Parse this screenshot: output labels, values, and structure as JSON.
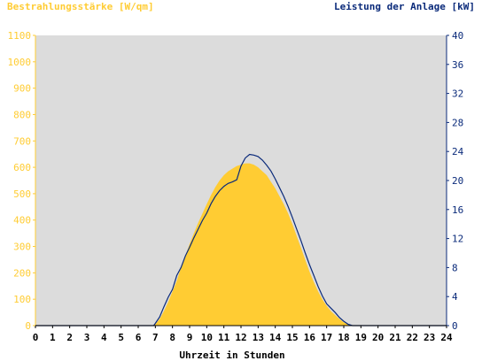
{
  "chart_data": {
    "type": "area",
    "left_axis_title": "Bestrahlungsstärke [W/qm]",
    "right_axis_title": "Leistung der Anlage [kW]",
    "xlabel": "Uhrzeit in Stunden",
    "x_ticks": [
      "0",
      "1",
      "2",
      "3",
      "4",
      "5",
      "6",
      "7",
      "8",
      "9",
      "10",
      "11",
      "12",
      "13",
      "14",
      "15",
      "16",
      "17",
      "18",
      "19",
      "20",
      "21",
      "22",
      "23",
      "24"
    ],
    "xlim": [
      0,
      24
    ],
    "y_left_ticks": [
      "0",
      "100",
      "200",
      "300",
      "400",
      "500",
      "600",
      "700",
      "800",
      "900",
      "1000",
      "1100"
    ],
    "ylim_left": [
      0,
      1100
    ],
    "y_right_ticks": [
      "0",
      "4",
      "8",
      "12",
      "16",
      "20",
      "24",
      "28",
      "32",
      "36",
      "40"
    ],
    "ylim_right": [
      0,
      40
    ],
    "grid": false,
    "colors": {
      "irradiance": "#ffcc33",
      "power": "#0a2a7a",
      "plot_background": "#dcdcdc",
      "left_axis": "#ffcc33",
      "right_axis": "#0a2a7a"
    },
    "series": [
      {
        "axis": "left",
        "style": "area",
        "x": [
          0,
          6.9,
          7.0,
          7.25,
          7.5,
          7.75,
          8.0,
          8.25,
          8.5,
          8.75,
          9.0,
          9.25,
          9.5,
          9.75,
          10.0,
          10.25,
          10.5,
          10.75,
          11.0,
          11.25,
          11.5,
          11.75,
          12.0,
          12.25,
          12.5,
          12.75,
          13.0,
          13.25,
          13.5,
          13.75,
          14.0,
          14.25,
          14.5,
          14.75,
          15.0,
          15.25,
          15.5,
          15.75,
          16.0,
          16.25,
          16.5,
          16.75,
          17.0,
          17.25,
          17.5,
          17.75,
          18.0,
          18.25,
          18.5,
          18.6,
          24
        ],
        "y": [
          0,
          0,
          5,
          25,
          55,
          90,
          130,
          170,
          220,
          265,
          310,
          350,
          390,
          425,
          460,
          495,
          525,
          550,
          570,
          585,
          595,
          605,
          610,
          615,
          615,
          610,
          600,
          585,
          570,
          545,
          520,
          490,
          460,
          425,
          385,
          340,
          295,
          250,
          205,
          165,
          130,
          100,
          75,
          55,
          40,
          25,
          12,
          5,
          1,
          0,
          0
        ]
      },
      {
        "axis": "right",
        "style": "line",
        "x": [
          0,
          6.9,
          7.0,
          7.25,
          7.5,
          7.75,
          8.0,
          8.25,
          8.5,
          8.75,
          9.0,
          9.25,
          9.5,
          9.75,
          10.0,
          10.25,
          10.5,
          10.75,
          11.0,
          11.25,
          11.5,
          11.75,
          12.0,
          12.25,
          12.5,
          12.75,
          13.0,
          13.25,
          13.5,
          13.75,
          14.0,
          14.25,
          14.5,
          14.75,
          15.0,
          15.25,
          15.5,
          15.75,
          16.0,
          16.25,
          16.5,
          16.75,
          17.0,
          17.25,
          17.5,
          17.75,
          18.0,
          18.25,
          18.5,
          18.6,
          24
        ],
        "y": [
          0,
          0,
          0.3,
          1.2,
          2.6,
          3.9,
          5.0,
          6.9,
          8.0,
          9.6,
          10.8,
          12.1,
          13.3,
          14.5,
          15.5,
          16.8,
          17.8,
          18.6,
          19.2,
          19.6,
          19.8,
          20.1,
          22.0,
          23.1,
          23.6,
          23.5,
          23.3,
          22.8,
          22.1,
          21.3,
          20.2,
          19.0,
          17.8,
          16.4,
          14.9,
          13.3,
          11.7,
          10.0,
          8.4,
          6.9,
          5.4,
          4.1,
          3.0,
          2.4,
          1.8,
          1.1,
          0.6,
          0.2,
          0,
          0,
          0
        ]
      }
    ]
  }
}
